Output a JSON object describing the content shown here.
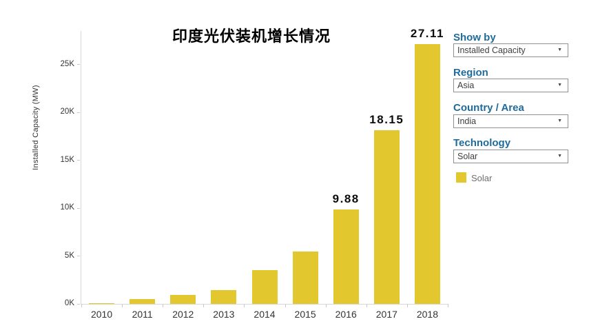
{
  "title": "印度光伏装机增长情况",
  "chart_data": {
    "type": "bar",
    "title": "印度光伏装机增长情况",
    "xlabel": "",
    "ylabel": "Installed Capacity (MW)",
    "categories": [
      "2010",
      "2011",
      "2012",
      "2013",
      "2014",
      "2015",
      "2016",
      "2017",
      "2018"
    ],
    "values": [
      0.1,
      0.5,
      0.94,
      1.45,
      3.55,
      5.5,
      9.88,
      18.15,
      27.11
    ],
    "values_unit": "K (thousand MW)",
    "data_labels": [
      "",
      "",
      "",
      "",
      "",
      "",
      "9.88",
      "18.15",
      "27.11"
    ],
    "y_ticks": [
      {
        "label": "0K",
        "value": 0
      },
      {
        "label": "5K",
        "value": 5
      },
      {
        "label": "10K",
        "value": 10
      },
      {
        "label": "15K",
        "value": 15
      },
      {
        "label": "20K",
        "value": 20
      },
      {
        "label": "25K",
        "value": 25
      }
    ],
    "ylim": [
      0,
      28.5
    ],
    "grid": false,
    "legend_position": "right",
    "series_name": "Solar",
    "bar_color": "#e3c72f"
  },
  "sidebar": {
    "filters": [
      {
        "label": "Show by",
        "value": "Installed Capacity"
      },
      {
        "label": "Region",
        "value": "Asia"
      },
      {
        "label": "Country / Area",
        "value": "India"
      },
      {
        "label": "Technology",
        "value": "Solar"
      }
    ],
    "legend": {
      "label": "Solar",
      "color": "#e3c72f"
    }
  },
  "colors": {
    "bar": "#e3c72f",
    "filter_label_blue": "#1f6b9d",
    "axis_line": "#d7d7d7",
    "axis_text": "#333333"
  }
}
